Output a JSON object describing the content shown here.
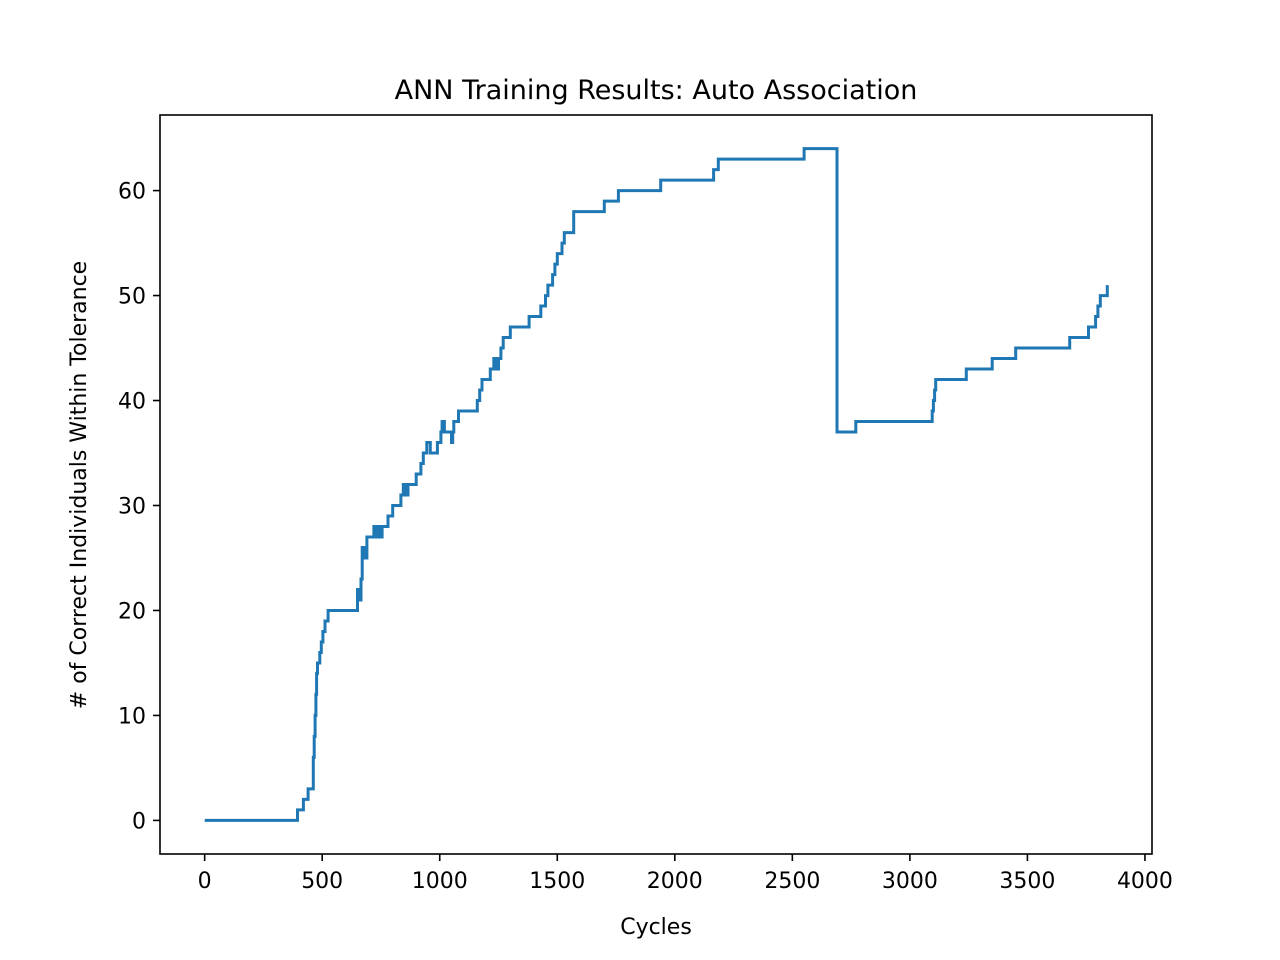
{
  "chart_data": {
    "type": "line",
    "title": "ANN Training Results: Auto Association",
    "xlabel": "Cycles",
    "ylabel": "# of Correct Individuals Within Tolerance",
    "xlim": [
      -190,
      4030
    ],
    "ylim": [
      -3.2,
      67.2
    ],
    "xticks": [
      0,
      500,
      1000,
      1500,
      2000,
      2500,
      3000,
      3500,
      4000
    ],
    "yticks": [
      0,
      10,
      20,
      30,
      40,
      50,
      60
    ],
    "grid": false,
    "legend": "none",
    "colors": {
      "line": "#1f77b4",
      "axes": "#000000",
      "background": "#ffffff"
    },
    "series": [
      {
        "step": "post",
        "x": [
          0,
          395,
          420,
          440,
          462,
          466,
          470,
          473,
          476,
          480,
          490,
          496,
          503,
          512,
          525,
          550,
          650,
          655,
          665,
          670,
          680,
          690,
          720,
          727,
          735,
          740,
          745,
          755,
          765,
          780,
          800,
          835,
          845,
          855,
          865,
          880,
          885,
          900,
          920,
          930,
          945,
          960,
          990,
          1005,
          1010,
          1020,
          1030,
          1045,
          1050,
          1055,
          1060,
          1065,
          1080,
          1160,
          1170,
          1180,
          1200,
          1215,
          1220,
          1230,
          1240,
          1250,
          1260,
          1270,
          1280,
          1300,
          1380,
          1430,
          1450,
          1460,
          1480,
          1490,
          1500,
          1520,
          1530,
          1570,
          1700,
          1760,
          1940,
          2165,
          2185,
          2550,
          2620,
          2690,
          2770,
          3095,
          3100,
          3105,
          3110,
          3130,
          3240,
          3350,
          3450,
          3620,
          3680,
          3760,
          3790,
          3800,
          3810,
          3840,
          3840
        ],
        "y": [
          0,
          1,
          2,
          3,
          6,
          8,
          10,
          12,
          14,
          15,
          16,
          17,
          18,
          19,
          20,
          20,
          22,
          21,
          23,
          26,
          25,
          27,
          28,
          27,
          28,
          28,
          27,
          28,
          28,
          29,
          30,
          31,
          32,
          31,
          32,
          32,
          32,
          33,
          34,
          35,
          36,
          35,
          36,
          37,
          38,
          37,
          37,
          37,
          36,
          37,
          38,
          38,
          39,
          40,
          41,
          42,
          42,
          43,
          43,
          44,
          43,
          44,
          45,
          46,
          46,
          47,
          48,
          49,
          50,
          51,
          52,
          53,
          54,
          55,
          56,
          58,
          59,
          60,
          61,
          62,
          63,
          64,
          64,
          37,
          38,
          39,
          40,
          41,
          42,
          42,
          43,
          44,
          45,
          45,
          46,
          47,
          48,
          49,
          50,
          50,
          51
        ]
      }
    ]
  }
}
